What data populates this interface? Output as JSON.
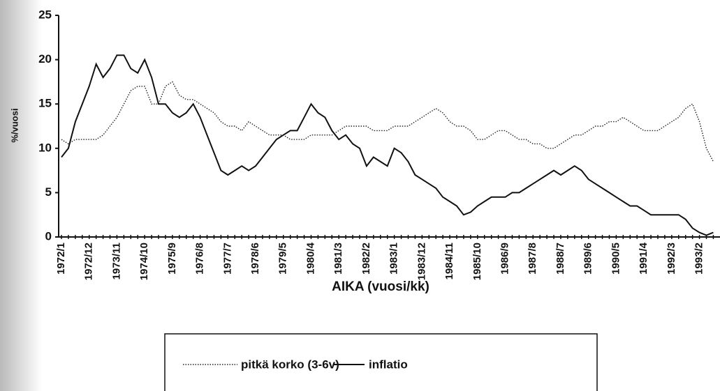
{
  "chart_data": {
    "type": "line",
    "ylabel": "%/vuosi",
    "xlabel": "AIKA (vuosi/kk)",
    "categories": [
      "1972/1",
      null,
      null,
      null,
      "1972/12",
      null,
      null,
      null,
      "1973/11",
      null,
      null,
      null,
      "1974/10",
      null,
      null,
      null,
      "1975/9",
      null,
      null,
      null,
      "1976/8",
      null,
      null,
      null,
      "1977/7",
      null,
      null,
      null,
      "1978/6",
      null,
      null,
      null,
      "1979/5",
      null,
      null,
      null,
      "1980/4",
      null,
      null,
      null,
      "1981/3",
      null,
      null,
      null,
      "1982/2",
      null,
      null,
      null,
      "1983/1",
      null,
      null,
      null,
      "1983/12",
      null,
      null,
      null,
      "1984/11",
      null,
      null,
      null,
      "1985/10",
      null,
      null,
      null,
      "1986/9",
      null,
      null,
      null,
      "1987/8",
      null,
      null,
      null,
      "1988/7",
      null,
      null,
      null,
      "1989/6",
      null,
      null,
      null,
      "1990/5",
      null,
      null,
      null,
      "1991/4",
      null,
      null,
      null,
      "1992/3",
      null,
      null,
      null,
      "1993/2",
      null,
      null
    ],
    "series": [
      {
        "name": "pitkä korko (3-6v)",
        "color": "#222222",
        "style": "dotted",
        "values": [
          11,
          10.5,
          11,
          11,
          11,
          11,
          11.5,
          12.5,
          13.5,
          15,
          16.5,
          17,
          17,
          15,
          15,
          17,
          17.5,
          16,
          15.5,
          15.5,
          15,
          14.5,
          14,
          13,
          12.5,
          12.5,
          12,
          13,
          12.5,
          12,
          11.5,
          11.5,
          11.5,
          11,
          11,
          11,
          11.5,
          11.5,
          11.5,
          11.5,
          12,
          12.5,
          12.5,
          12.5,
          12.5,
          12,
          12,
          12,
          12.5,
          12.5,
          12.5,
          13,
          13.5,
          14,
          14.5,
          14,
          13,
          12.5,
          12.5,
          12,
          11,
          11,
          11.5,
          12,
          12,
          11.5,
          11,
          11,
          10.5,
          10.5,
          10,
          10,
          10.5,
          11,
          11.5,
          11.5,
          12,
          12.5,
          12.5,
          13,
          13,
          13.5,
          13,
          12.5,
          12,
          12,
          12,
          12.5,
          13,
          13.5,
          14.5,
          15,
          13,
          10,
          8.5
        ]
      },
      {
        "name": "inflatio",
        "color": "#111111",
        "style": "solid",
        "values": [
          9,
          10,
          13,
          15,
          17,
          19.5,
          18,
          19,
          20.5,
          20.5,
          19,
          18.5,
          20,
          18,
          15,
          15,
          14,
          13.5,
          14,
          15,
          13.5,
          11.5,
          9.5,
          7.5,
          7,
          7.5,
          8,
          7.5,
          8,
          9,
          10,
          11,
          11.5,
          12,
          12,
          13.5,
          15,
          14,
          13.5,
          12,
          11,
          11.5,
          10.5,
          10,
          8,
          9,
          8.5,
          8,
          10,
          9.5,
          8.5,
          7,
          6.5,
          6,
          5.5,
          4.5,
          4,
          3.5,
          2.5,
          2.8,
          3.5,
          4,
          4.5,
          4.5,
          4.5,
          5,
          5,
          5.5,
          6,
          6.5,
          7,
          7.5,
          7,
          7.5,
          8,
          7.5,
          6.5,
          6,
          5.5,
          5,
          4.5,
          4,
          3.5,
          3.5,
          3,
          2.5,
          2.5,
          2.5,
          2.5,
          2.5,
          2,
          1,
          0.5,
          0.2,
          0.5
        ]
      }
    ],
    "ylim": [
      0,
      25
    ],
    "yticks": [
      0,
      5,
      10,
      15,
      20,
      25
    ],
    "grid": false
  }
}
